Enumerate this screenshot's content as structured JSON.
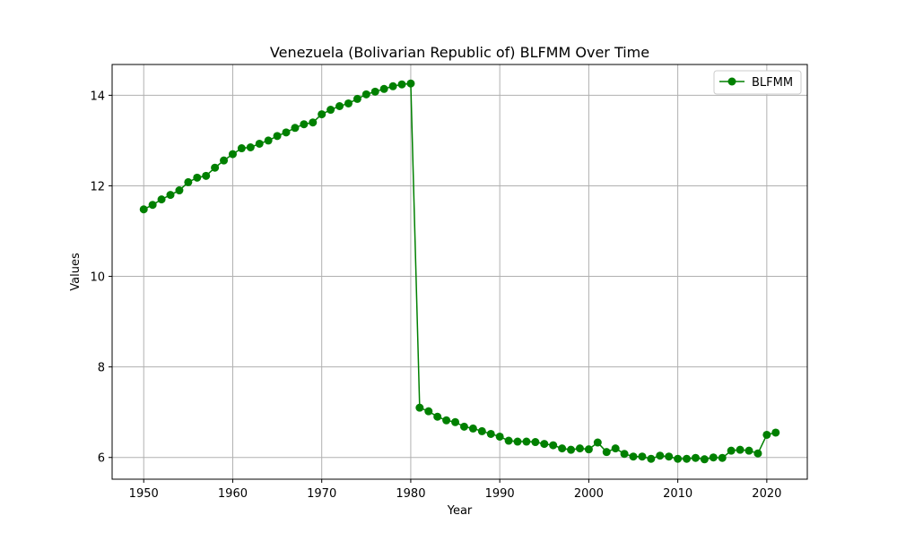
{
  "chart_data": {
    "type": "line",
    "title": "Venezuela (Bolivarian Republic of) BLFMM Over Time",
    "xlabel": "Year",
    "ylabel": "Values",
    "xlim": [
      1946.45,
      2024.55
    ],
    "ylim": [
      5.52,
      14.68
    ],
    "xticks": [
      1950,
      1960,
      1970,
      1980,
      1990,
      2000,
      2010,
      2020
    ],
    "yticks": [
      6,
      8,
      10,
      12,
      14
    ],
    "grid": true,
    "legend_position": "top-right",
    "line_color": "#008000",
    "series": [
      {
        "name": "BLFMM",
        "x": [
          1950,
          1951,
          1952,
          1953,
          1954,
          1955,
          1956,
          1957,
          1958,
          1959,
          1960,
          1961,
          1962,
          1963,
          1964,
          1965,
          1966,
          1967,
          1968,
          1969,
          1970,
          1971,
          1972,
          1973,
          1974,
          1975,
          1976,
          1977,
          1978,
          1979,
          1980,
          1981,
          1982,
          1983,
          1984,
          1985,
          1986,
          1987,
          1988,
          1989,
          1990,
          1991,
          1992,
          1993,
          1994,
          1995,
          1996,
          1997,
          1998,
          1999,
          2000,
          2001,
          2002,
          2003,
          2004,
          2005,
          2006,
          2007,
          2008,
          2009,
          2010,
          2011,
          2012,
          2013,
          2014,
          2015,
          2016,
          2017,
          2018,
          2019,
          2020,
          2021
        ],
        "y": [
          11.48,
          11.58,
          11.7,
          11.8,
          11.9,
          12.08,
          12.18,
          12.22,
          12.4,
          12.56,
          12.7,
          12.83,
          12.85,
          12.93,
          13.0,
          13.1,
          13.18,
          13.28,
          13.36,
          13.4,
          13.58,
          13.68,
          13.76,
          13.82,
          13.92,
          14.02,
          14.08,
          14.14,
          14.2,
          14.24,
          14.26,
          7.1,
          7.02,
          6.9,
          6.82,
          6.78,
          6.68,
          6.64,
          6.58,
          6.52,
          6.46,
          6.37,
          6.35,
          6.35,
          6.34,
          6.3,
          6.27,
          6.2,
          6.17,
          6.2,
          6.18,
          6.33,
          6.12,
          6.2,
          6.08,
          6.02,
          6.02,
          5.97,
          6.04,
          6.02,
          5.97,
          5.97,
          5.99,
          5.96,
          6.0,
          5.99,
          6.15,
          6.17,
          6.15,
          6.09,
          6.5,
          6.55
        ]
      }
    ]
  }
}
